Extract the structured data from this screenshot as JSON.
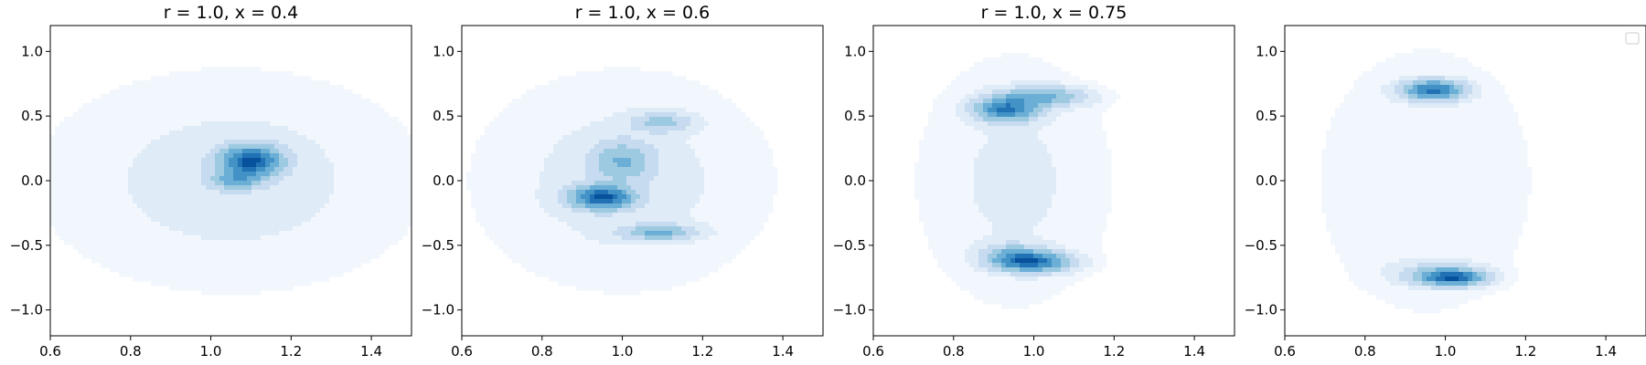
{
  "chart_data": [
    {
      "type": "heatmap",
      "subtype": "filled-contour-density",
      "title": "r = 1.0, x = 0.4",
      "xlim": [
        0.6,
        1.5
      ],
      "ylim": [
        -1.2,
        1.2
      ],
      "xticks": [
        0.6,
        0.8,
        1.0,
        1.2,
        1.4
      ],
      "yticks": [
        -1.0,
        -0.5,
        0.0,
        0.5,
        1.0
      ],
      "xtick_labels": [
        "0.6",
        "0.8",
        "1.0",
        "1.2",
        "1.4"
      ],
      "ytick_labels": [
        "−1.0",
        "−0.5",
        "0.0",
        "0.5",
        "1.0"
      ],
      "colormap": "Blues",
      "grid": false,
      "peaks": [
        {
          "x": 1.1,
          "y": 0.15
        }
      ],
      "density_peaks": [
        {
          "x": 1.1,
          "y": 0.15,
          "sx": 0.05,
          "sy": 0.08,
          "amp": 1.0
        },
        {
          "x": 1.06,
          "y": 0.0,
          "sx": 0.04,
          "sy": 0.05,
          "amp": 0.4
        },
        {
          "x": 1.05,
          "y": 0.0,
          "sx": 0.28,
          "sy": 0.5,
          "amp": 0.1
        }
      ]
    },
    {
      "type": "heatmap",
      "subtype": "filled-contour-density",
      "title": "r = 1.0, x = 0.6",
      "xlim": [
        0.6,
        1.5
      ],
      "ylim": [
        -1.2,
        1.2
      ],
      "xticks": [
        0.6,
        0.8,
        1.0,
        1.2,
        1.4
      ],
      "yticks": [
        -1.0,
        -0.5,
        0.0,
        0.5,
        1.0
      ],
      "xtick_labels": [
        "0.6",
        "0.8",
        "1.0",
        "1.2",
        "1.4"
      ],
      "ytick_labels": [
        "−1.0",
        "−0.5",
        "0.0",
        "0.5",
        "1.0"
      ],
      "colormap": "Blues",
      "grid": false,
      "peaks": [
        {
          "x": 0.95,
          "y": -0.13
        },
        {
          "x": 1.09,
          "y": -0.4
        },
        {
          "x": 1.1,
          "y": 0.45
        }
      ],
      "density_peaks": [
        {
          "x": 0.95,
          "y": -0.13,
          "sx": 0.05,
          "sy": 0.06,
          "amp": 1.0
        },
        {
          "x": 1.09,
          "y": -0.4,
          "sx": 0.06,
          "sy": 0.04,
          "amp": 0.45
        },
        {
          "x": 1.0,
          "y": 0.15,
          "sx": 0.05,
          "sy": 0.1,
          "amp": 0.4
        },
        {
          "x": 1.1,
          "y": 0.45,
          "sx": 0.05,
          "sy": 0.05,
          "amp": 0.3
        },
        {
          "x": 1.0,
          "y": 0.0,
          "sx": 0.22,
          "sy": 0.5,
          "amp": 0.1
        }
      ]
    },
    {
      "type": "heatmap",
      "subtype": "filled-contour-density",
      "title": "r = 1.0, x = 0.75",
      "xlim": [
        0.6,
        1.5
      ],
      "ylim": [
        -1.2,
        1.2
      ],
      "xticks": [
        0.6,
        0.8,
        1.0,
        1.2,
        1.4
      ],
      "yticks": [
        -1.0,
        -0.5,
        0.0,
        0.5,
        1.0
      ],
      "xtick_labels": [
        "0.6",
        "0.8",
        "1.0",
        "1.2",
        "1.4"
      ],
      "ytick_labels": [
        "−1.0",
        "−0.5",
        "0.0",
        "0.5",
        "1.0"
      ],
      "colormap": "Blues",
      "grid": false,
      "peaks": [
        {
          "x": 0.93,
          "y": 0.55
        },
        {
          "x": 1.0,
          "y": -0.63
        }
      ],
      "density_peaks": [
        {
          "x": 0.93,
          "y": 0.55,
          "sx": 0.05,
          "sy": 0.06,
          "amp": 1.0
        },
        {
          "x": 1.02,
          "y": 0.65,
          "sx": 0.07,
          "sy": 0.05,
          "amp": 0.6
        },
        {
          "x": 1.0,
          "y": -0.63,
          "sx": 0.06,
          "sy": 0.05,
          "amp": 1.0
        },
        {
          "x": 0.95,
          "y": -0.58,
          "sx": 0.05,
          "sy": 0.06,
          "amp": 0.5
        },
        {
          "x": 0.95,
          "y": 0.0,
          "sx": 0.15,
          "sy": 0.6,
          "amp": 0.1
        }
      ]
    },
    {
      "type": "heatmap",
      "subtype": "filled-contour-density",
      "title": "",
      "xlim": [
        0.6,
        1.5
      ],
      "ylim": [
        -1.2,
        1.2
      ],
      "xticks": [
        0.6,
        0.8,
        1.0,
        1.2,
        1.4
      ],
      "yticks": [
        -1.0,
        -0.5,
        0.0,
        0.5,
        1.0
      ],
      "xtick_labels": [
        "0.6",
        "0.8",
        "1.0",
        "1.2",
        "1.4"
      ],
      "ytick_labels": [
        "−1.0",
        "−0.5",
        "0.0",
        "0.5",
        "1.0"
      ],
      "colormap": "Blues",
      "grid": false,
      "legend": {
        "placement": "upper-right",
        "entries": []
      },
      "peaks": [
        {
          "x": 0.97,
          "y": 0.7
        },
        {
          "x": 1.02,
          "y": -0.75
        }
      ],
      "density_peaks": [
        {
          "x": 0.97,
          "y": 0.7,
          "sx": 0.05,
          "sy": 0.05,
          "amp": 1.0
        },
        {
          "x": 1.02,
          "y": -0.75,
          "sx": 0.05,
          "sy": 0.04,
          "amp": 1.0
        },
        {
          "x": 0.98,
          "y": -0.72,
          "sx": 0.07,
          "sy": 0.06,
          "amp": 0.3
        },
        {
          "x": 0.95,
          "y": 0.0,
          "sx": 0.18,
          "sy": 0.7,
          "amp": 0.07
        }
      ]
    }
  ],
  "colors": {
    "levels": [
      "#f2f7fd",
      "#dfebf7",
      "#c6dbef",
      "#9ecae1",
      "#6baed6",
      "#4292c6",
      "#2171b5",
      "#08519c"
    ],
    "axis": "#000000",
    "background": "#ffffff"
  }
}
